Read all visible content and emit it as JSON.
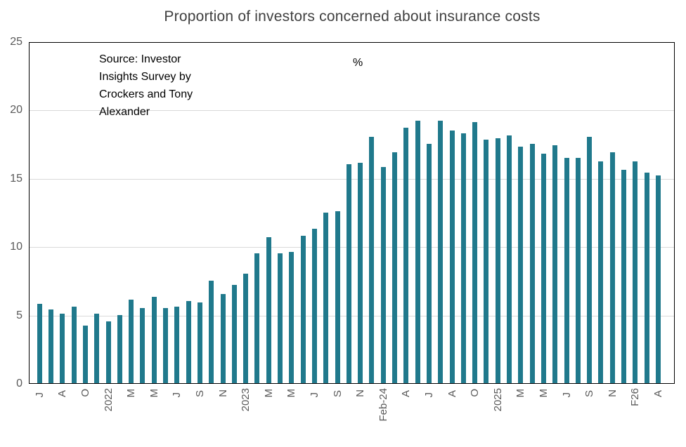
{
  "title": "Proportion of investors concerned about insurance costs",
  "annotations": {
    "source_note": "Source: Investor\nInsights Survey by\nCrockers and Tony\nAlexander",
    "unit_label": "%"
  },
  "colors": {
    "bar": "#20798c",
    "title_text": "#404040",
    "axis_text": "#595959",
    "gridline": "#d9d9d9",
    "plot_border": "#000000"
  },
  "chart_data": {
    "type": "bar",
    "title": "Proportion of investors concerned about insurance costs",
    "xlabel": "",
    "ylabel": "%",
    "ylim": [
      0,
      25
    ],
    "yticks": [
      0,
      5,
      10,
      15,
      20,
      25
    ],
    "grid": true,
    "legend": "none",
    "categories": [
      "J",
      "",
      "A",
      "",
      "O",
      "",
      "2022",
      "",
      "M",
      "",
      "M",
      "",
      "J",
      "",
      "S",
      "",
      "N",
      "",
      "2023",
      "",
      "M",
      "",
      "M",
      "",
      "J",
      "",
      "S",
      "",
      "N",
      "",
      "Feb-24",
      "",
      "A",
      "",
      "J",
      "",
      "A",
      "",
      "O",
      "",
      "2025",
      "",
      "M",
      "",
      "M",
      "",
      "J",
      "",
      "S",
      "",
      "N",
      "",
      "F26",
      "",
      "A"
    ],
    "values": [
      5.8,
      5.4,
      5.1,
      5.6,
      4.2,
      5.1,
      4.5,
      5.0,
      6.1,
      5.5,
      6.3,
      5.5,
      5.6,
      6.0,
      5.9,
      7.5,
      6.5,
      7.2,
      8.0,
      9.5,
      10.7,
      9.5,
      9.6,
      10.8,
      11.3,
      12.5,
      12.6,
      16.0,
      16.1,
      18.0,
      15.8,
      16.9,
      18.7,
      19.2,
      17.5,
      19.2,
      18.5,
      18.3,
      19.1,
      17.8,
      17.9,
      18.1,
      17.3,
      17.5,
      16.8,
      17.4,
      16.5,
      16.5,
      18.0,
      16.2,
      16.9,
      15.6,
      16.2,
      15.4,
      15.2
    ]
  }
}
